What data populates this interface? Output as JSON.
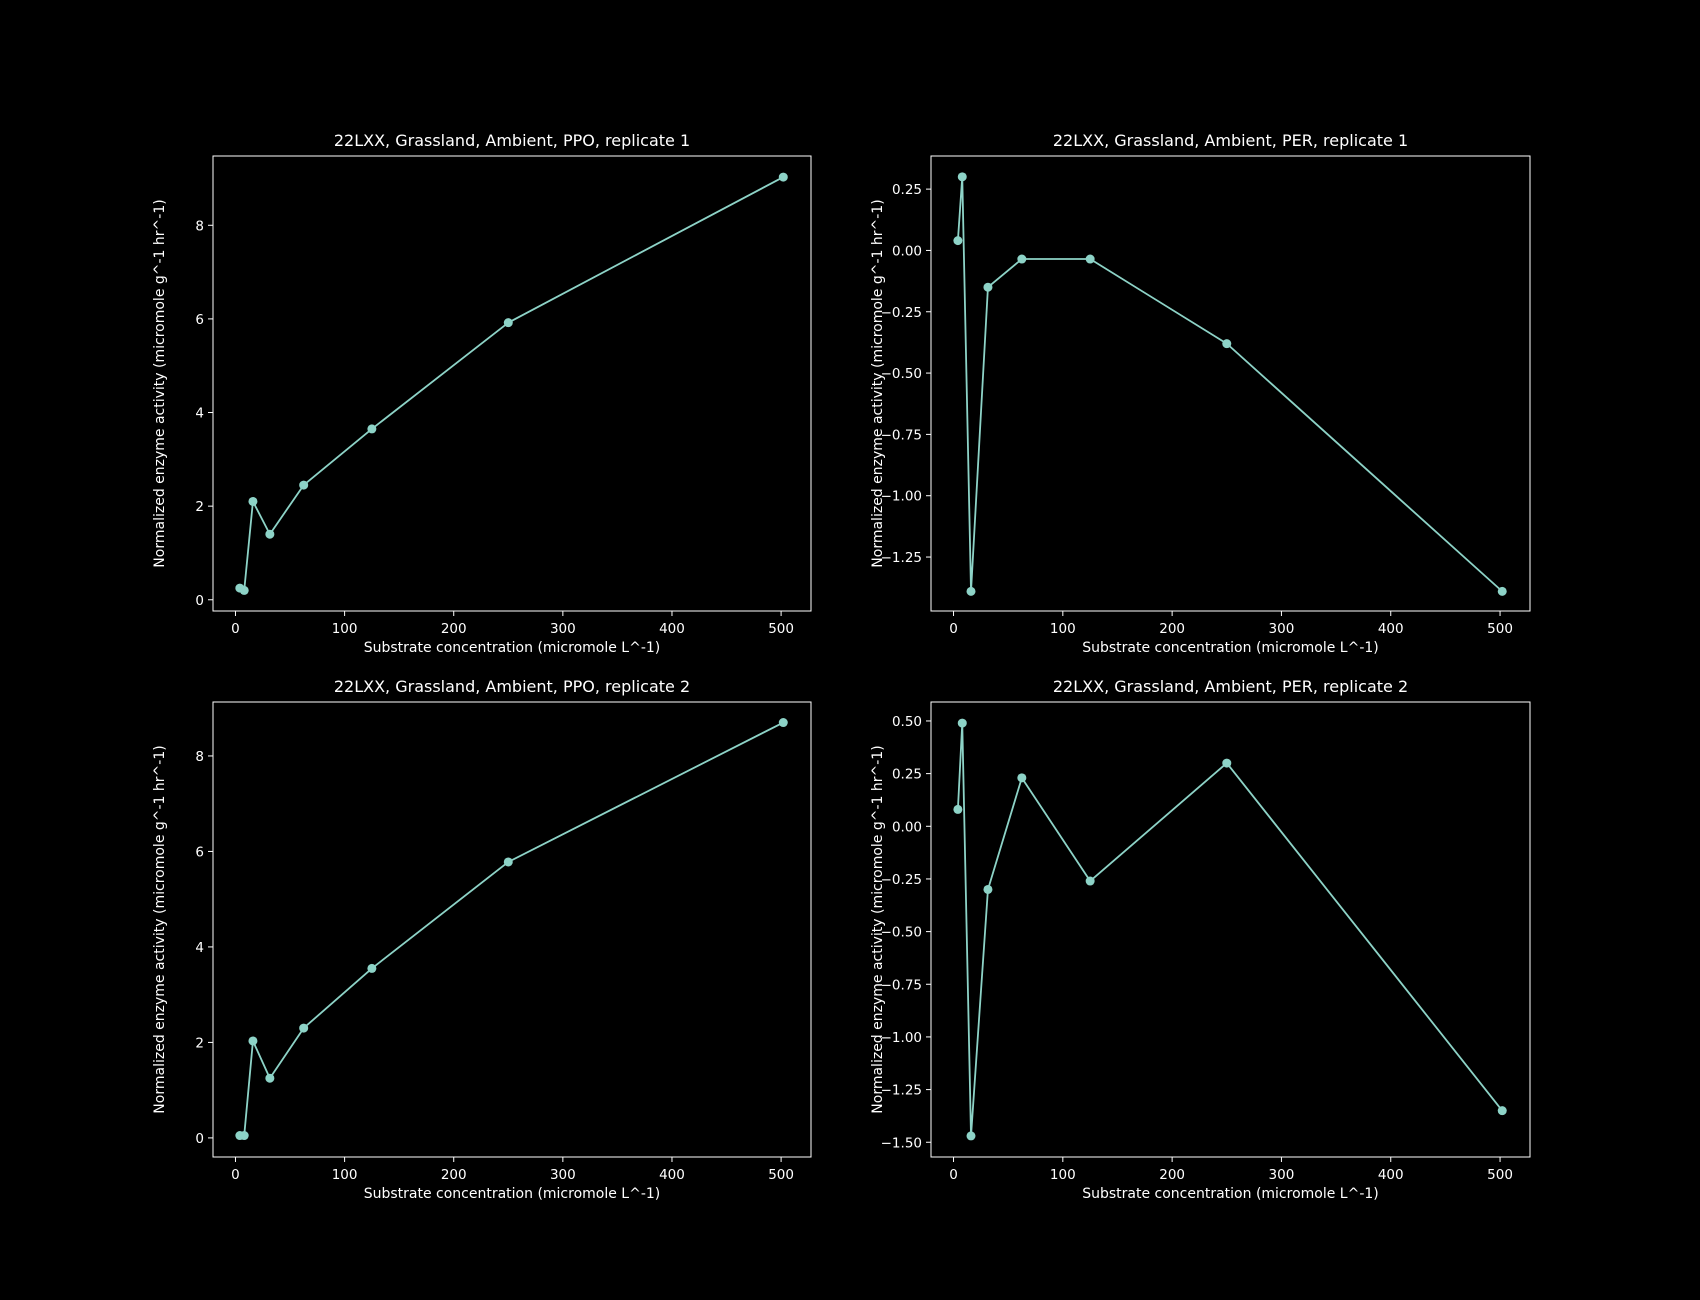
{
  "figure": {
    "background": "#000000",
    "foreground": "#ffffff",
    "series_color": "#8dd3c7"
  },
  "chart_data": [
    {
      "type": "line",
      "title": "22LXX, Grassland, Ambient, PPO, replicate 1",
      "xlabel": "Substrate concentration (micromole L^-1)",
      "ylabel": "Normalized enzyme activity (micromole g^-1 hr^-1)",
      "xlim": [
        -20.6,
        527.4
      ],
      "ylim": [
        -0.24,
        9.48
      ],
      "xticks": [
        0,
        100,
        200,
        300,
        400,
        500
      ],
      "xtick_labels": [
        "0",
        "100",
        "200",
        "300",
        "400",
        "500"
      ],
      "yticks": [
        0,
        2,
        4,
        6,
        8
      ],
      "ytick_labels": [
        "0",
        "2",
        "4",
        "6",
        "8"
      ],
      "grid": false,
      "series": [
        {
          "name": "replicate 1",
          "x": [
            4,
            8,
            16,
            31.5,
            62.5,
            125,
            250,
            502
          ],
          "y": [
            0.25,
            0.2,
            2.1,
            1.4,
            2.45,
            3.65,
            5.92,
            9.03
          ]
        }
      ]
    },
    {
      "type": "line",
      "title": "22LXX, Grassland, Ambient, PER, replicate 1",
      "xlabel": "Substrate concentration (micromole L^-1)",
      "ylabel": "Normalized enzyme activity (micromole g^-1 hr^-1)",
      "xlim": [
        -20.6,
        527.4
      ],
      "ylim": [
        -1.47,
        0.385
      ],
      "xticks": [
        0,
        100,
        200,
        300,
        400,
        500
      ],
      "xtick_labels": [
        "0",
        "100",
        "200",
        "300",
        "400",
        "500"
      ],
      "yticks": [
        0.25,
        0,
        -0.25,
        -0.5,
        -0.75,
        -1.0,
        -1.25
      ],
      "ytick_labels": [
        "0.25",
        "0.00",
        "−0.25",
        "−0.50",
        "−0.75",
        "−1.00",
        "−1.25"
      ],
      "grid": false,
      "series": [
        {
          "name": "replicate 1",
          "x": [
            4,
            8,
            16,
            31.5,
            62.5,
            125,
            250,
            502
          ],
          "y": [
            0.04,
            0.3,
            -1.39,
            -0.15,
            -0.035,
            -0.035,
            -0.38,
            -1.39
          ]
        }
      ]
    },
    {
      "type": "line",
      "title": "22LXX, Grassland, Ambient, PPO, replicate 2",
      "xlabel": "Substrate concentration (micromole L^-1)",
      "ylabel": "Normalized enzyme activity (micromole g^-1 hr^-1)",
      "xlim": [
        -20.6,
        527.4
      ],
      "ylim": [
        -0.4,
        9.13
      ],
      "xticks": [
        0,
        100,
        200,
        300,
        400,
        500
      ],
      "xtick_labels": [
        "0",
        "100",
        "200",
        "300",
        "400",
        "500"
      ],
      "yticks": [
        0,
        2,
        4,
        6,
        8
      ],
      "ytick_labels": [
        "0",
        "2",
        "4",
        "6",
        "8"
      ],
      "grid": false,
      "series": [
        {
          "name": "replicate 2",
          "x": [
            4,
            8,
            16,
            31.5,
            62.5,
            125,
            250,
            502
          ],
          "y": [
            0.05,
            0.05,
            2.03,
            1.25,
            2.3,
            3.55,
            5.78,
            8.7
          ]
        }
      ]
    },
    {
      "type": "line",
      "title": "22LXX, Grassland, Ambient, PER, replicate 2",
      "xlabel": "Substrate concentration (micromole L^-1)",
      "ylabel": "Normalized enzyme activity (micromole g^-1 hr^-1)",
      "xlim": [
        -20.6,
        527.4
      ],
      "ylim": [
        -1.57,
        0.59
      ],
      "xticks": [
        0,
        100,
        200,
        300,
        400,
        500
      ],
      "xtick_labels": [
        "0",
        "100",
        "200",
        "300",
        "400",
        "500"
      ],
      "yticks": [
        0.5,
        0.25,
        0,
        -0.25,
        -0.5,
        -0.75,
        -1.0,
        -1.25,
        -1.5
      ],
      "ytick_labels": [
        "0.50",
        "0.25",
        "0.00",
        "−0.25",
        "−0.50",
        "−0.75",
        "−1.00",
        "−1.25",
        "−1.50"
      ],
      "grid": false,
      "series": [
        {
          "name": "replicate 2",
          "x": [
            4,
            8,
            16,
            31.5,
            62.5,
            125,
            250,
            502
          ],
          "y": [
            0.08,
            0.49,
            -1.47,
            -0.3,
            0.23,
            -0.26,
            0.3,
            -1.35
          ]
        }
      ]
    }
  ]
}
